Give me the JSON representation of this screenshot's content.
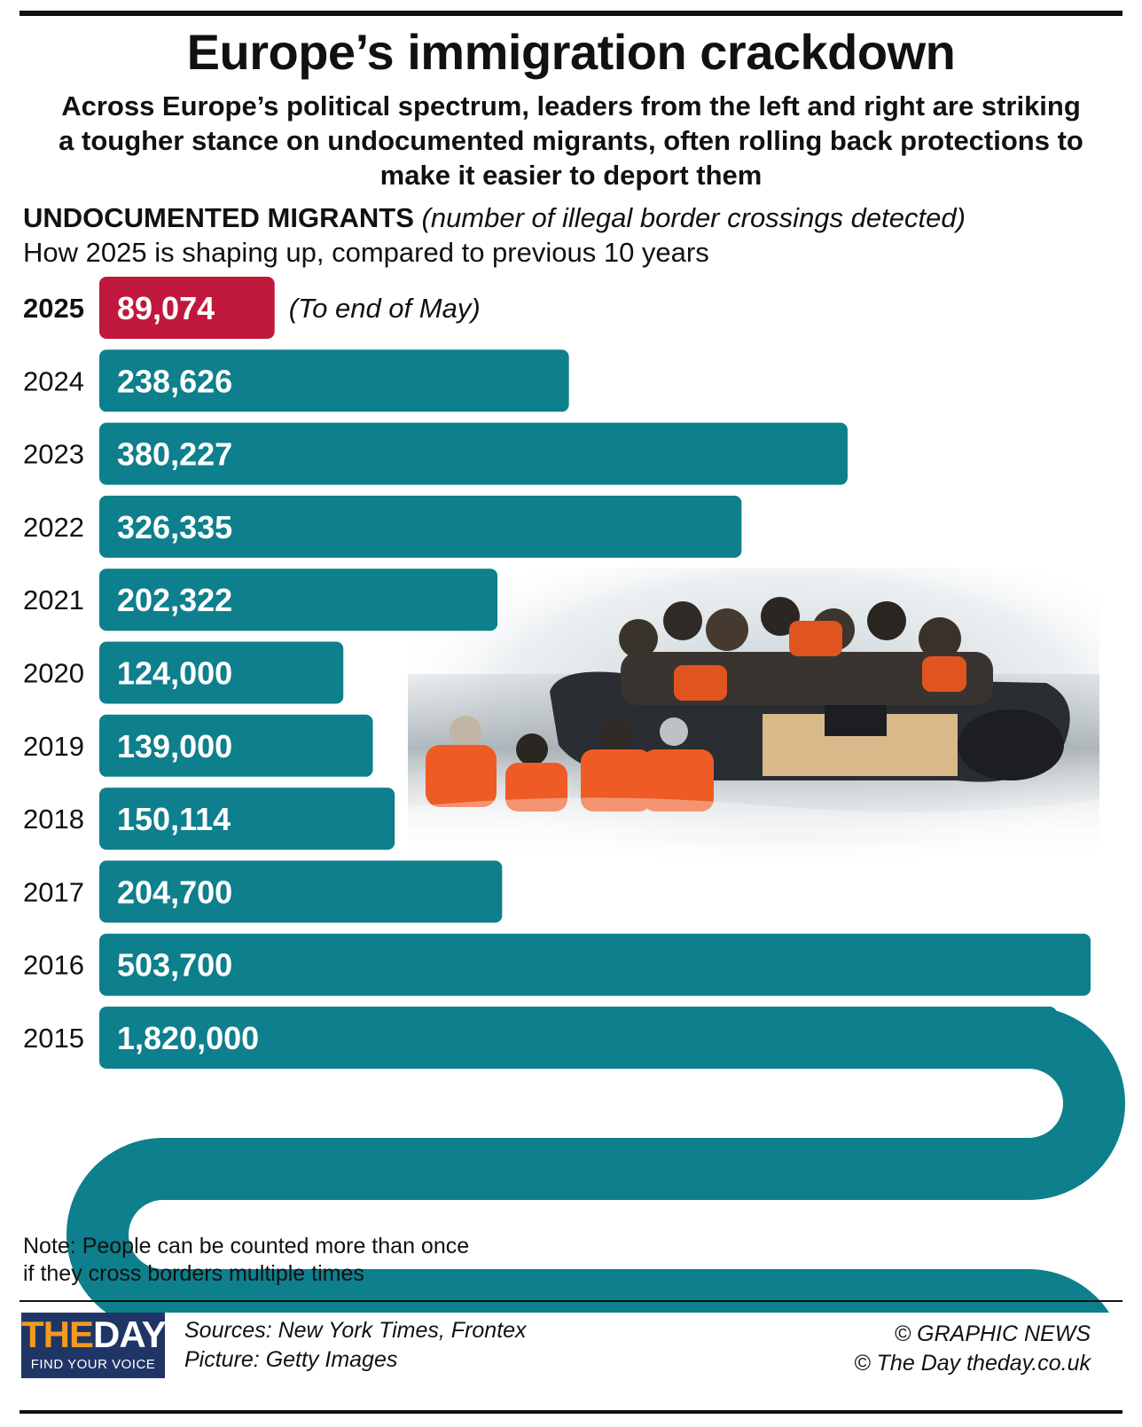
{
  "title": "Europe’s immigration crackdown",
  "subtitle": "Across Europe’s political spectrum, leaders from the left and right are striking a tougher stance on undocumented migrants, often rolling back protections to make it easier to deport them",
  "chart_heading": {
    "bold": "UNDOCUMENTED MIGRANTS",
    "italic": "(number of illegal border crossings detected)"
  },
  "chart_subheading": "How 2025 is shaping up, compared to previous 10 years",
  "chart_data": {
    "type": "bar",
    "orientation": "horizontal",
    "categories": [
      "2025",
      "2024",
      "2023",
      "2022",
      "2021",
      "2020",
      "2019",
      "2018",
      "2017",
      "2016",
      "2015"
    ],
    "values": [
      89074,
      238626,
      380227,
      326335,
      202322,
      124000,
      139000,
      150114,
      204700,
      503700,
      1820000
    ],
    "value_labels": [
      "89,074",
      "238,626",
      "380,227",
      "326,335",
      "202,322",
      "124,000",
      "139,000",
      "150,114",
      "204,700",
      "503,700",
      "1,820,000"
    ],
    "highlight_index": 0,
    "annotation": "(To end of May)",
    "colors": {
      "bar": "#0e7f8c",
      "highlight": "#c0183c"
    },
    "notes": "The 2015 bar is too long to fit and is drawn winding back and forth across the page"
  },
  "photo": {
    "credit_icon": "migrant-boat-photo"
  },
  "note": "Note: People can be counted more than once if they cross borders multiple times",
  "logo": {
    "the": "THE",
    "day": "DAY",
    "tagline": "FIND YOUR VOICE",
    "colors": {
      "bg": "#1f3566",
      "accent": "#f29a1f"
    }
  },
  "sources": {
    "line1": "Sources: New York Times, Frontex",
    "line2": "Picture: Getty Images"
  },
  "credits": {
    "line1": "© GRAPHIC NEWS",
    "line2": "© The Day   theday.co.uk"
  }
}
